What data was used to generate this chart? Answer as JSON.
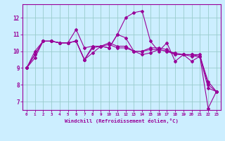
{
  "title": "",
  "xlabel": "Windchill (Refroidissement éolien,°C)",
  "bg_color": "#cceeff",
  "line_color": "#990099",
  "grid_color": "#99cccc",
  "xlim": [
    -0.5,
    23.5
  ],
  "ylim": [
    6.5,
    12.8
  ],
  "yticks": [
    7,
    8,
    9,
    10,
    11,
    12
  ],
  "xticks": [
    0,
    1,
    2,
    3,
    4,
    5,
    6,
    7,
    8,
    9,
    10,
    11,
    12,
    13,
    14,
    15,
    16,
    17,
    18,
    19,
    20,
    21,
    22,
    23
  ],
  "series": [
    [
      9.0,
      9.6,
      10.6,
      10.6,
      10.5,
      10.5,
      10.6,
      9.5,
      9.9,
      10.3,
      10.2,
      11.0,
      10.8,
      10.0,
      9.8,
      9.9,
      10.1,
      10.0,
      9.8,
      9.8,
      9.4,
      9.7,
      7.8,
      7.6
    ],
    [
      9.0,
      10.0,
      10.6,
      10.6,
      10.5,
      10.5,
      11.3,
      10.2,
      10.3,
      10.3,
      10.2,
      11.0,
      12.0,
      12.3,
      12.4,
      10.6,
      10.0,
      10.5,
      9.4,
      9.8,
      9.8,
      9.7,
      6.6,
      7.6
    ],
    [
      9.0,
      9.8,
      10.6,
      10.6,
      10.5,
      10.5,
      10.6,
      9.5,
      10.3,
      10.3,
      10.5,
      10.3,
      10.3,
      10.0,
      10.0,
      10.2,
      10.2,
      10.1,
      9.8,
      9.8,
      9.8,
      9.8,
      8.0,
      7.6
    ],
    [
      9.0,
      9.8,
      10.6,
      10.6,
      10.5,
      10.5,
      10.6,
      9.5,
      10.2,
      10.3,
      10.4,
      10.2,
      10.2,
      10.0,
      10.0,
      10.1,
      10.1,
      10.0,
      9.9,
      9.8,
      9.7,
      9.7,
      8.2,
      7.6
    ]
  ]
}
